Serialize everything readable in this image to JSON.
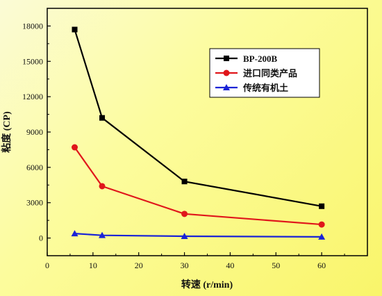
{
  "chart_data": {
    "type": "line",
    "title": "",
    "xlabel": "转速 (r/min)",
    "ylabel": "粘度 (CP)",
    "xlim": [
      0,
      70
    ],
    "ylim": [
      -1500,
      19500
    ],
    "xticks": [
      0,
      10,
      20,
      30,
      40,
      50,
      60
    ],
    "yticks": [
      0,
      3000,
      6000,
      9000,
      12000,
      15000,
      18000
    ],
    "grid": false,
    "legend_position": "top-right",
    "series": [
      {
        "name": "BP-200B",
        "color": "#000000",
        "marker": "square",
        "x": [
          6,
          12,
          30,
          60
        ],
        "y": [
          17700,
          10200,
          4800,
          2700
        ]
      },
      {
        "name": "进口同类产品",
        "color": "#e0161b",
        "marker": "circle",
        "x": [
          6,
          12,
          30,
          60
        ],
        "y": [
          7700,
          4400,
          2050,
          1150
        ]
      },
      {
        "name": "传统有机土",
        "color": "#1a23d6",
        "marker": "triangle",
        "x": [
          6,
          12,
          30,
          60
        ],
        "y": [
          380,
          230,
          150,
          100
        ]
      }
    ]
  }
}
